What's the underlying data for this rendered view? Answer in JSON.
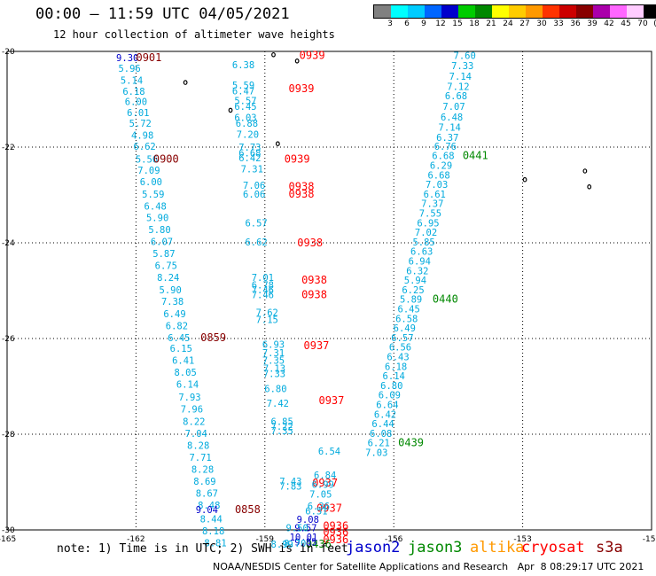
{
  "title": "00:00 – 11:59 UTC 04/05/2021",
  "subtitle": "12 hour collection of altimeter wave heights",
  "colorbar": {
    "colors": [
      "#808080",
      "#00ffff",
      "#00ccff",
      "#0066ff",
      "#0000cc",
      "#00cc00",
      "#008800",
      "#ffff00",
      "#ffcc00",
      "#ff9900",
      "#ff3300",
      "#cc0000",
      "#880000",
      "#aa00aa",
      "#ff66ff",
      "#ffccff",
      "#000000"
    ],
    "labels": [
      "3",
      "6",
      "9",
      "12",
      "15",
      "18",
      "21",
      "24",
      "27",
      "30",
      "33",
      "36",
      "39",
      "42",
      "45",
      "70",
      "(ft)"
    ]
  },
  "note": "note: 1) Time is in UTC; 2) SWH is in feet",
  "satellites": [
    {
      "name": "jason2",
      "color": "#0000cc"
    },
    {
      "name": "jason3",
      "color": "#008800"
    },
    {
      "name": "altika",
      "color": "#ff9900"
    },
    {
      "name": "cryosat",
      "color": "#ff0000"
    },
    {
      "name": "s3a",
      "color": "#880000"
    }
  ],
  "footer": "NOAA/NESDIS Center for Satellite Applications and Research   Apr  8 08:29:17 UTC 2021",
  "chart_data": {
    "type": "scatter",
    "x_ticks": [
      -165,
      -162,
      -159,
      -156,
      -153,
      -150
    ],
    "y_ticks": [
      -20,
      -22,
      -24,
      -26,
      -28,
      -30
    ],
    "xlim": [
      -165,
      -150
    ],
    "ylim": [
      -30,
      -20
    ],
    "grid": true,
    "points": [
      {
        "lon": -162.2,
        "lat": -20.13,
        "v": "9.30",
        "c": "#0000cc"
      },
      {
        "lon": -161.7,
        "lat": -20.13,
        "v": "0901",
        "c": "#880000"
      },
      {
        "lon": -162.15,
        "lat": -20.35,
        "v": "5.96",
        "c": "#00aadd"
      },
      {
        "lon": -162.1,
        "lat": -20.6,
        "v": "5.14",
        "c": "#00aadd"
      },
      {
        "lon": -162.05,
        "lat": -20.83,
        "v": "6.18",
        "c": "#00aadd"
      },
      {
        "lon": -162.0,
        "lat": -21.05,
        "v": "6.00",
        "c": "#00aadd"
      },
      {
        "lon": -161.95,
        "lat": -21.28,
        "v": "6.01",
        "c": "#00aadd"
      },
      {
        "lon": -161.9,
        "lat": -21.5,
        "v": "5.72",
        "c": "#00aadd"
      },
      {
        "lon": -161.85,
        "lat": -21.75,
        "v": "4.98",
        "c": "#00aadd"
      },
      {
        "lon": -161.8,
        "lat": -21.98,
        "v": "6.62",
        "c": "#00aadd"
      },
      {
        "lon": -161.75,
        "lat": -22.25,
        "v": "5.56",
        "c": "#00aadd"
      },
      {
        "lon": -161.3,
        "lat": -22.25,
        "v": "0900",
        "c": "#880000"
      },
      {
        "lon": -161.7,
        "lat": -22.48,
        "v": "7.09",
        "c": "#00aadd"
      },
      {
        "lon": -161.65,
        "lat": -22.72,
        "v": "6.00",
        "c": "#00aadd"
      },
      {
        "lon": -161.6,
        "lat": -22.98,
        "v": "5.59",
        "c": "#00aadd"
      },
      {
        "lon": -161.55,
        "lat": -23.23,
        "v": "6.48",
        "c": "#00aadd"
      },
      {
        "lon": -161.5,
        "lat": -23.47,
        "v": "5.90",
        "c": "#00aadd"
      },
      {
        "lon": -161.45,
        "lat": -23.72,
        "v": "5.80",
        "c": "#00aadd"
      },
      {
        "lon": -161.4,
        "lat": -23.97,
        "v": "6.07",
        "c": "#00aadd"
      },
      {
        "lon": -161.35,
        "lat": -24.22,
        "v": "5.87",
        "c": "#00aadd"
      },
      {
        "lon": -161.3,
        "lat": -24.47,
        "v": "6.75",
        "c": "#00aadd"
      },
      {
        "lon": -161.25,
        "lat": -24.72,
        "v": "8.24",
        "c": "#00aadd"
      },
      {
        "lon": -161.2,
        "lat": -24.98,
        "v": "5.90",
        "c": "#00aadd"
      },
      {
        "lon": -161.15,
        "lat": -25.22,
        "v": "7.38",
        "c": "#00aadd"
      },
      {
        "lon": -161.1,
        "lat": -25.48,
        "v": "6.49",
        "c": "#00aadd"
      },
      {
        "lon": -161.05,
        "lat": -25.73,
        "v": "6.82",
        "c": "#00aadd"
      },
      {
        "lon": -161.0,
        "lat": -25.98,
        "v": "6.45",
        "c": "#00aadd"
      },
      {
        "lon": -160.2,
        "lat": -25.98,
        "v": "0859",
        "c": "#880000"
      },
      {
        "lon": -160.95,
        "lat": -26.2,
        "v": "6.15",
        "c": "#00aadd"
      },
      {
        "lon": -160.9,
        "lat": -26.45,
        "v": "6.41",
        "c": "#00aadd"
      },
      {
        "lon": -160.85,
        "lat": -26.7,
        "v": "8.05",
        "c": "#00aadd"
      },
      {
        "lon": -160.8,
        "lat": -26.95,
        "v": "6.14",
        "c": "#00aadd"
      },
      {
        "lon": -160.75,
        "lat": -27.22,
        "v": "7.93",
        "c": "#00aadd"
      },
      {
        "lon": -160.7,
        "lat": -27.47,
        "v": "7.96",
        "c": "#00aadd"
      },
      {
        "lon": -160.65,
        "lat": -27.73,
        "v": "8.22",
        "c": "#00aadd"
      },
      {
        "lon": -160.6,
        "lat": -27.98,
        "v": "7.04",
        "c": "#00aadd"
      },
      {
        "lon": -160.55,
        "lat": -28.23,
        "v": "8.28",
        "c": "#00aadd"
      },
      {
        "lon": -160.5,
        "lat": -28.48,
        "v": "7.71",
        "c": "#00aadd"
      },
      {
        "lon": -160.45,
        "lat": -28.73,
        "v": "8.28",
        "c": "#00aadd"
      },
      {
        "lon": -160.4,
        "lat": -28.98,
        "v": "8.69",
        "c": "#00aadd"
      },
      {
        "lon": -160.35,
        "lat": -29.23,
        "v": "8.67",
        "c": "#00aadd"
      },
      {
        "lon": -160.3,
        "lat": -29.48,
        "v": "8.48",
        "c": "#00aadd"
      },
      {
        "lon": -160.35,
        "lat": -29.57,
        "v": "9.04",
        "c": "#0000cc"
      },
      {
        "lon": -159.4,
        "lat": -29.57,
        "v": "0858",
        "c": "#880000"
      },
      {
        "lon": -160.25,
        "lat": -29.77,
        "v": "8.44",
        "c": "#00aadd"
      },
      {
        "lon": -160.2,
        "lat": -30.02,
        "v": "8.18",
        "c": "#00aadd"
      },
      {
        "lon": -160.15,
        "lat": -30.27,
        "v": "8.81",
        "c": "#00aadd"
      },
      {
        "lon": -159.5,
        "lat": -20.28,
        "v": "6.38",
        "c": "#00aadd"
      },
      {
        "lon": -159.5,
        "lat": -20.7,
        "v": "5.59",
        "c": "#00aadd"
      },
      {
        "lon": -159.5,
        "lat": -20.82,
        "v": "6.47",
        "c": "#00aadd"
      },
      {
        "lon": -159.45,
        "lat": -21.03,
        "v": "5.57",
        "c": "#00aadd"
      },
      {
        "lon": -159.45,
        "lat": -21.15,
        "v": "6.45",
        "c": "#00aadd"
      },
      {
        "lon": -159.45,
        "lat": -21.38,
        "v": "6.03",
        "c": "#00aadd"
      },
      {
        "lon": -159.42,
        "lat": -21.5,
        "v": "6.88",
        "c": "#00aadd"
      },
      {
        "lon": -159.4,
        "lat": -21.73,
        "v": "7.20",
        "c": "#00aadd"
      },
      {
        "lon": -159.35,
        "lat": -22.0,
        "v": "7.73",
        "c": "#00aadd"
      },
      {
        "lon": -159.35,
        "lat": -22.12,
        "v": "6.68",
        "c": "#00aadd"
      },
      {
        "lon": -159.35,
        "lat": -22.22,
        "v": "6.42",
        "c": "#00aadd"
      },
      {
        "lon": -159.3,
        "lat": -22.45,
        "v": "7.31",
        "c": "#00aadd"
      },
      {
        "lon": -159.25,
        "lat": -22.8,
        "v": "7.06",
        "c": "#00aadd"
      },
      {
        "lon": -159.25,
        "lat": -22.98,
        "v": "6.06",
        "c": "#00aadd"
      },
      {
        "lon": -159.2,
        "lat": -23.58,
        "v": "6.57",
        "c": "#00aadd"
      },
      {
        "lon": -159.2,
        "lat": -23.98,
        "v": "6.62",
        "c": "#00aadd"
      },
      {
        "lon": -159.05,
        "lat": -24.72,
        "v": "7.01",
        "c": "#00aadd"
      },
      {
        "lon": -159.05,
        "lat": -24.88,
        "v": "6.78",
        "c": "#00aadd"
      },
      {
        "lon": -159.05,
        "lat": -24.98,
        "v": "7.46",
        "c": "#00aadd"
      },
      {
        "lon": -159.05,
        "lat": -25.08,
        "v": "7.46",
        "c": "#00aadd"
      },
      {
        "lon": -158.95,
        "lat": -25.45,
        "v": "7.62",
        "c": "#00aadd"
      },
      {
        "lon": -158.95,
        "lat": -25.6,
        "v": "7.15",
        "c": "#00aadd"
      },
      {
        "lon": -158.8,
        "lat": -26.12,
        "v": "6.93",
        "c": "#00aadd"
      },
      {
        "lon": -158.8,
        "lat": -26.3,
        "v": "7.31",
        "c": "#00aadd"
      },
      {
        "lon": -158.8,
        "lat": -26.45,
        "v": "7.35",
        "c": "#00aadd"
      },
      {
        "lon": -158.78,
        "lat": -26.62,
        "v": "7.13",
        "c": "#00aadd"
      },
      {
        "lon": -158.78,
        "lat": -26.73,
        "v": "7.33",
        "c": "#00aadd"
      },
      {
        "lon": -158.75,
        "lat": -27.05,
        "v": "6.80",
        "c": "#00aadd"
      },
      {
        "lon": -158.7,
        "lat": -27.35,
        "v": "7.42",
        "c": "#00aadd"
      },
      {
        "lon": -158.6,
        "lat": -27.73,
        "v": "6.85",
        "c": "#00aadd"
      },
      {
        "lon": -158.6,
        "lat": -27.83,
        "v": "7.22",
        "c": "#00aadd"
      },
      {
        "lon": -158.6,
        "lat": -27.93,
        "v": "7.35",
        "c": "#00aadd"
      },
      {
        "lon": -158.4,
        "lat": -28.98,
        "v": "7.43",
        "c": "#00aadd"
      },
      {
        "lon": -158.4,
        "lat": -29.08,
        "v": "7.83",
        "c": "#00aadd"
      },
      {
        "lon": -157.9,
        "lat": -20.08,
        "v": "0939",
        "c": "#ff0000"
      },
      {
        "lon": -158.15,
        "lat": -20.78,
        "v": "0939",
        "c": "#ff0000"
      },
      {
        "lon": -158.25,
        "lat": -22.25,
        "v": "0939",
        "c": "#ff0000"
      },
      {
        "lon": -158.15,
        "lat": -22.82,
        "v": "0938",
        "c": "#ff0000"
      },
      {
        "lon": -158.15,
        "lat": -22.98,
        "v": "0938",
        "c": "#ff0000"
      },
      {
        "lon": -157.95,
        "lat": -24.0,
        "v": "0938",
        "c": "#ff0000"
      },
      {
        "lon": -157.85,
        "lat": -24.78,
        "v": "0938",
        "c": "#ff0000"
      },
      {
        "lon": -157.85,
        "lat": -25.08,
        "v": "0938",
        "c": "#ff0000"
      },
      {
        "lon": -157.8,
        "lat": -26.15,
        "v": "0937",
        "c": "#ff0000"
      },
      {
        "lon": -157.45,
        "lat": -27.3,
        "v": "0937",
        "c": "#ff0000"
      },
      {
        "lon": -157.6,
        "lat": -29.02,
        "v": "0937",
        "c": "#ff0000"
      },
      {
        "lon": -157.5,
        "lat": -29.55,
        "v": "0937",
        "c": "#ff0000"
      },
      {
        "lon": -157.35,
        "lat": -29.92,
        "v": "0936",
        "c": "#ff0000"
      },
      {
        "lon": -157.35,
        "lat": -30.05,
        "v": "0936",
        "c": "#ff0000"
      },
      {
        "lon": -157.35,
        "lat": -30.2,
        "v": "0936",
        "c": "#ff0000"
      },
      {
        "lon": -157.75,
        "lat": -30.3,
        "v": "0436",
        "c": "#008800"
      },
      {
        "lon": -157.5,
        "lat": -28.35,
        "v": "6.54",
        "c": "#00aadd"
      },
      {
        "lon": -157.6,
        "lat": -28.85,
        "v": "6.84",
        "c": "#00aadd"
      },
      {
        "lon": -157.65,
        "lat": -29.05,
        "v": "6.99",
        "c": "#00aadd"
      },
      {
        "lon": -157.7,
        "lat": -29.25,
        "v": "7.05",
        "c": "#00aadd"
      },
      {
        "lon": -157.75,
        "lat": -29.5,
        "v": "6.36",
        "c": "#00aadd"
      },
      {
        "lon": -157.8,
        "lat": -29.6,
        "v": "6.51",
        "c": "#00aadd"
      },
      {
        "lon": -158.0,
        "lat": -29.78,
        "v": "9.08",
        "c": "#0000cc"
      },
      {
        "lon": -158.05,
        "lat": -29.95,
        "v": "9.57",
        "c": "#0000cc"
      },
      {
        "lon": -158.1,
        "lat": -30.15,
        "v": "10.01",
        "c": "#0000cc"
      },
      {
        "lon": -158.05,
        "lat": -30.25,
        "v": "9.85",
        "c": "#0000cc"
      },
      {
        "lon": -158.6,
        "lat": -30.3,
        "v": "8.99",
        "c": "#00aadd"
      },
      {
        "lon": -158.25,
        "lat": -29.95,
        "v": "9.50",
        "c": "#00aadd"
      },
      {
        "lon": -158.3,
        "lat": -30.28,
        "v": "8.70",
        "c": "#00aadd"
      },
      {
        "lon": -154.35,
        "lat": -20.08,
        "v": "7.60",
        "c": "#00aadd"
      },
      {
        "lon": -154.4,
        "lat": -20.3,
        "v": "7.33",
        "c": "#00aadd"
      },
      {
        "lon": -154.45,
        "lat": -20.52,
        "v": "7.14",
        "c": "#00aadd"
      },
      {
        "lon": -154.5,
        "lat": -20.73,
        "v": "7.12",
        "c": "#00aadd"
      },
      {
        "lon": -154.55,
        "lat": -20.93,
        "v": "6.68",
        "c": "#00aadd"
      },
      {
        "lon": -154.6,
        "lat": -21.15,
        "v": "7.07",
        "c": "#00aadd"
      },
      {
        "lon": -154.65,
        "lat": -21.37,
        "v": "6.48",
        "c": "#00aadd"
      },
      {
        "lon": -154.7,
        "lat": -21.58,
        "v": "7.14",
        "c": "#00aadd"
      },
      {
        "lon": -154.75,
        "lat": -21.8,
        "v": "6.37",
        "c": "#00aadd"
      },
      {
        "lon": -154.8,
        "lat": -21.98,
        "v": "6.76",
        "c": "#00aadd"
      },
      {
        "lon": -154.85,
        "lat": -22.18,
        "v": "6.68",
        "c": "#00aadd"
      },
      {
        "lon": -154.1,
        "lat": -22.18,
        "v": "0441",
        "c": "#008800"
      },
      {
        "lon": -154.9,
        "lat": -22.38,
        "v": "6.29",
        "c": "#00aadd"
      },
      {
        "lon": -154.95,
        "lat": -22.58,
        "v": "6.68",
        "c": "#00aadd"
      },
      {
        "lon": -155.0,
        "lat": -22.78,
        "v": "7.03",
        "c": "#00aadd"
      },
      {
        "lon": -155.05,
        "lat": -22.98,
        "v": "6.61",
        "c": "#00aadd"
      },
      {
        "lon": -155.1,
        "lat": -23.18,
        "v": "7.37",
        "c": "#00aadd"
      },
      {
        "lon": -155.15,
        "lat": -23.38,
        "v": "7.55",
        "c": "#00aadd"
      },
      {
        "lon": -155.2,
        "lat": -23.58,
        "v": "6.95",
        "c": "#00aadd"
      },
      {
        "lon": -155.25,
        "lat": -23.78,
        "v": "7.02",
        "c": "#00aadd"
      },
      {
        "lon": -155.3,
        "lat": -23.98,
        "v": "5.85",
        "c": "#00aadd"
      },
      {
        "lon": -155.35,
        "lat": -24.18,
        "v": "6.63",
        "c": "#00aadd"
      },
      {
        "lon": -155.4,
        "lat": -24.38,
        "v": "6.94",
        "c": "#00aadd"
      },
      {
        "lon": -155.45,
        "lat": -24.58,
        "v": "6.32",
        "c": "#00aadd"
      },
      {
        "lon": -155.5,
        "lat": -24.78,
        "v": "5.94",
        "c": "#00aadd"
      },
      {
        "lon": -155.55,
        "lat": -24.98,
        "v": "6.25",
        "c": "#00aadd"
      },
      {
        "lon": -155.6,
        "lat": -25.18,
        "v": "5.89",
        "c": "#00aadd"
      },
      {
        "lon": -154.8,
        "lat": -25.18,
        "v": "0440",
        "c": "#008800"
      },
      {
        "lon": -155.65,
        "lat": -25.38,
        "v": "6.45",
        "c": "#00aadd"
      },
      {
        "lon": -155.7,
        "lat": -25.58,
        "v": "6.58",
        "c": "#00aadd"
      },
      {
        "lon": -155.75,
        "lat": -25.78,
        "v": "6.49",
        "c": "#00aadd"
      },
      {
        "lon": -155.8,
        "lat": -25.98,
        "v": "6.57",
        "c": "#00aadd"
      },
      {
        "lon": -155.85,
        "lat": -26.18,
        "v": "6.56",
        "c": "#00aadd"
      },
      {
        "lon": -155.9,
        "lat": -26.38,
        "v": "6.43",
        "c": "#00aadd"
      },
      {
        "lon": -155.95,
        "lat": -26.58,
        "v": "6.18",
        "c": "#00aadd"
      },
      {
        "lon": -156.0,
        "lat": -26.78,
        "v": "6.14",
        "c": "#00aadd"
      },
      {
        "lon": -156.05,
        "lat": -26.98,
        "v": "6.80",
        "c": "#00aadd"
      },
      {
        "lon": -156.1,
        "lat": -27.18,
        "v": "6.09",
        "c": "#00aadd"
      },
      {
        "lon": -156.15,
        "lat": -27.38,
        "v": "6.64",
        "c": "#00aadd"
      },
      {
        "lon": -156.2,
        "lat": -27.58,
        "v": "6.42",
        "c": "#00aadd"
      },
      {
        "lon": -156.25,
        "lat": -27.78,
        "v": "6.44",
        "c": "#00aadd"
      },
      {
        "lon": -156.3,
        "lat": -27.98,
        "v": "6.08",
        "c": "#00aadd"
      },
      {
        "lon": -156.35,
        "lat": -28.18,
        "v": "6.21",
        "c": "#00aadd"
      },
      {
        "lon": -155.6,
        "lat": -28.18,
        "v": "0439",
        "c": "#008800"
      },
      {
        "lon": -156.4,
        "lat": -28.38,
        "v": "7.03",
        "c": "#00aadd"
      }
    ],
    "islands": [
      {
        "lon": -158.8,
        "lat": -20.07
      },
      {
        "lon": -158.25,
        "lat": -20.2
      },
      {
        "lon": -160.85,
        "lat": -20.65
      },
      {
        "lon": -159.8,
        "lat": -21.23
      },
      {
        "lon": -158.7,
        "lat": -21.93
      },
      {
        "lon": -152.95,
        "lat": -22.68
      },
      {
        "lon": -151.55,
        "lat": -22.5
      },
      {
        "lon": -151.45,
        "lat": -22.83
      }
    ]
  }
}
